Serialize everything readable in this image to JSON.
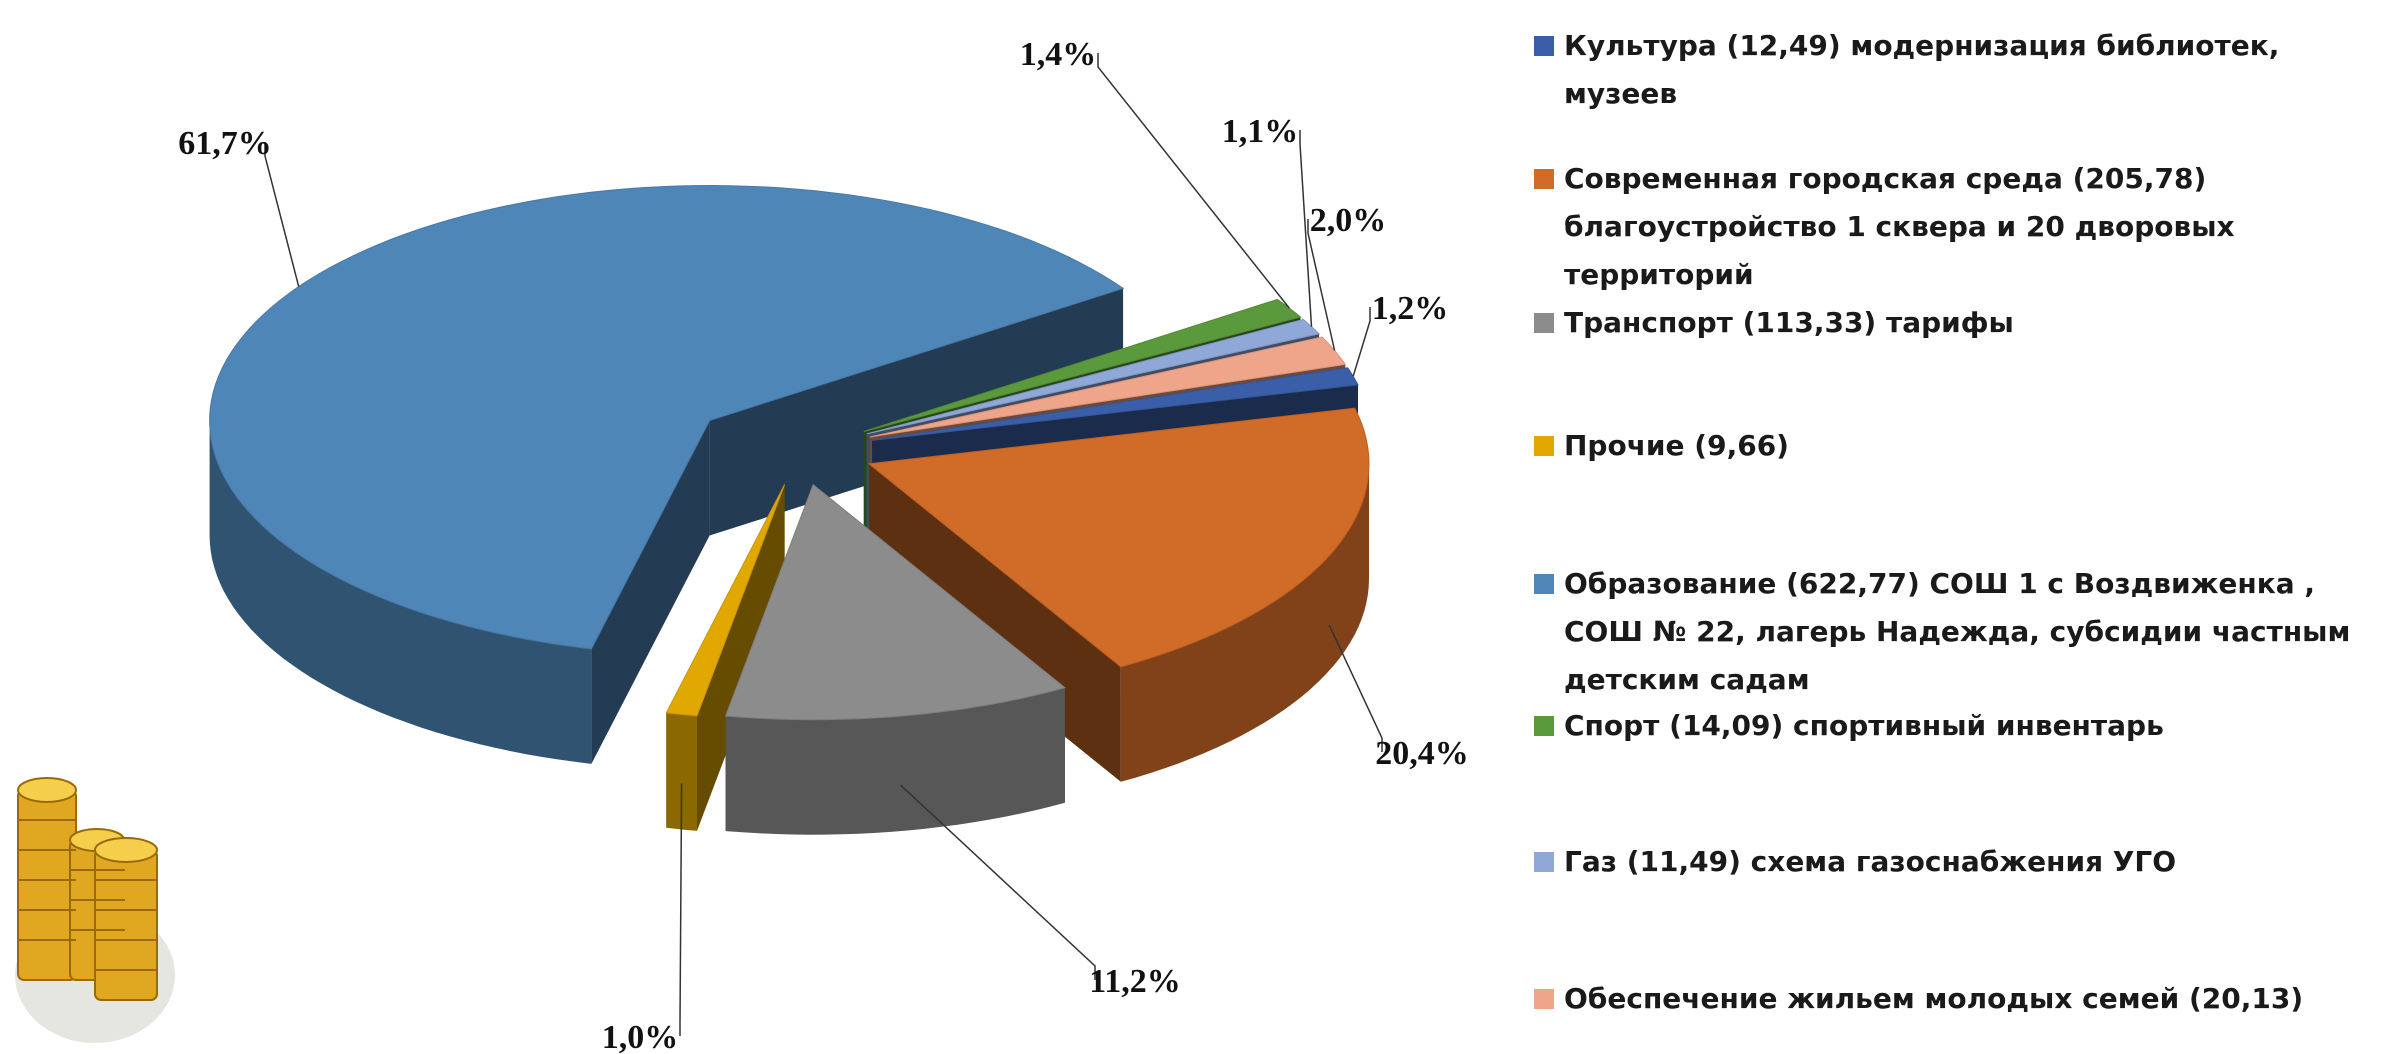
{
  "chart_data": {
    "type": "pie",
    "categories": [
      "Культура (12,49) модернизация библиотек, музеев",
      "Современная городская среда (205,78) благоустройство 1 сквера и 20 дворовых территорий",
      "Транспорт (113,33) тарифы",
      "Прочие (9,66)",
      "Образование (622,77) СОШ 1 с Воздвиженка , СОШ № 22, лагерь Надежда, субсидии частным детским садам",
      "Спорт (14,09) спортивный инвентарь",
      "Газ (11,49) схема газоснабжения УГО",
      "Обеспечение жильем молодых семей (20,13)"
    ],
    "values": [
      1.2,
      20.4,
      11.2,
      1.0,
      61.7,
      1.4,
      1.1,
      2.0
    ],
    "value_labels": [
      "1,2%",
      "20,4%",
      "11,2%",
      "1,0%",
      "61,7%",
      "1,4%",
      "1,1%",
      "2,0%"
    ],
    "colors": [
      "#3a5fa8",
      "#d06b28",
      "#8c8c8c",
      "#e0a800",
      "#4f86b8",
      "#5b9a3c",
      "#8fa8d8",
      "#eea58a"
    ],
    "legend": "right"
  }
}
